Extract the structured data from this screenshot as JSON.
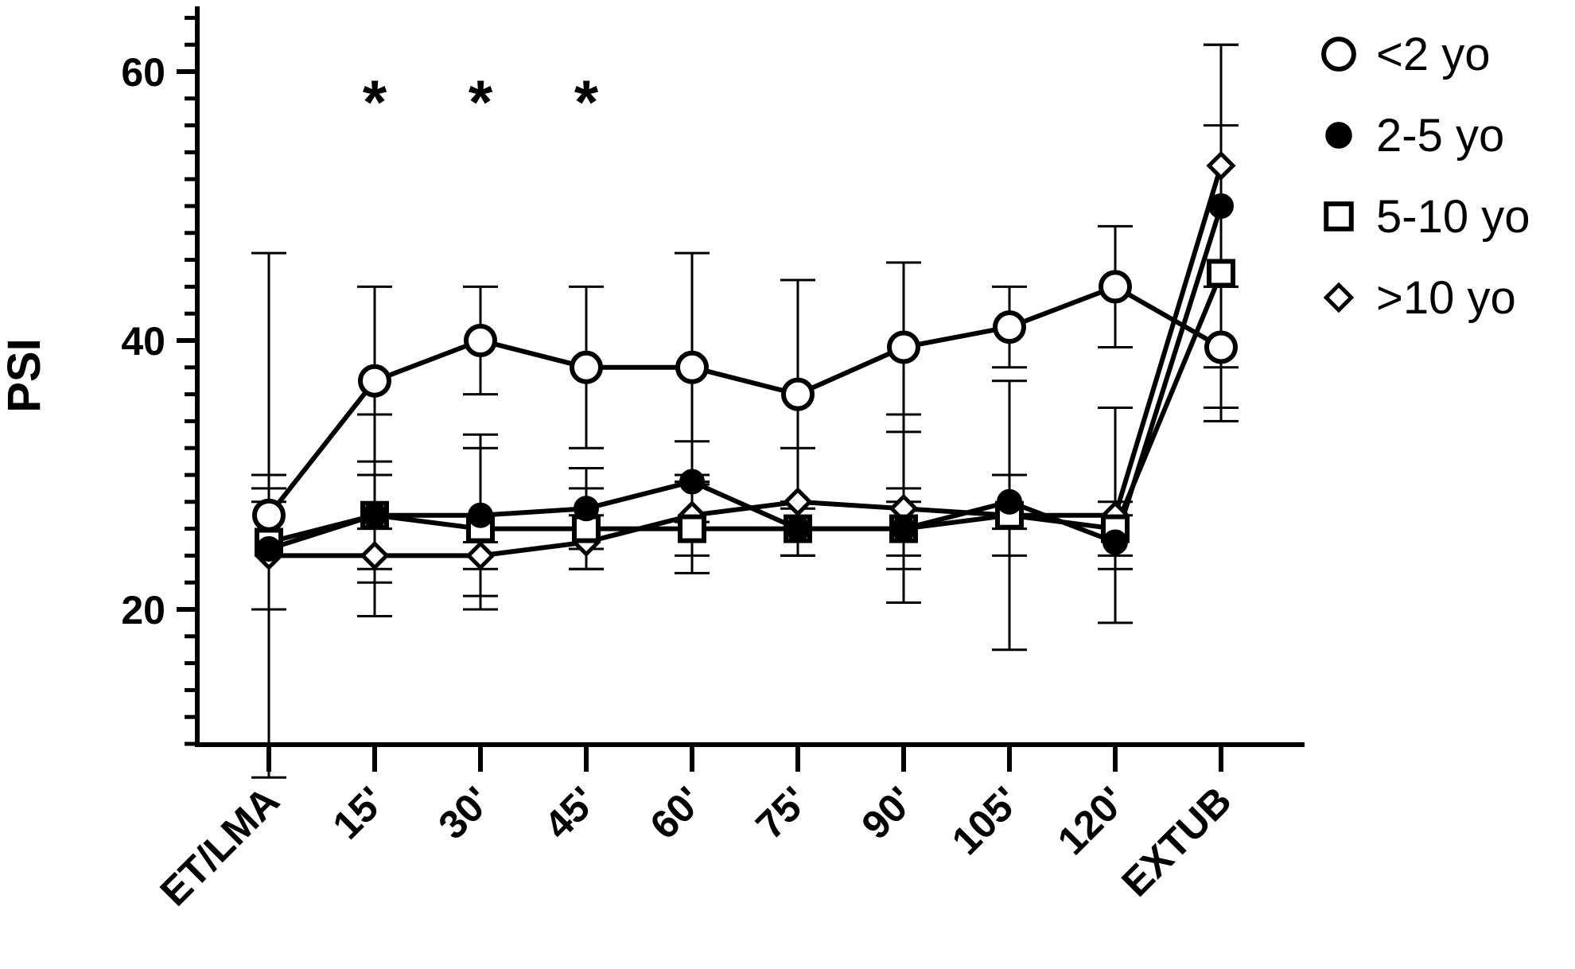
{
  "chart_data": {
    "type": "line",
    "title": "",
    "xlabel": "",
    "ylabel": "PSI",
    "ylim": [
      10,
      65
    ],
    "yticks": [
      20,
      40,
      60
    ],
    "categories": [
      "ET/LMA",
      "15'",
      "30'",
      "45'",
      "60'",
      "75'",
      "90'",
      "105'",
      "120'",
      "EXTUB"
    ],
    "legend_position": "right",
    "grid": false,
    "annotations": [
      {
        "category": "15'",
        "text": "*",
        "y": 59
      },
      {
        "category": "30'",
        "text": "*",
        "y": 59
      },
      {
        "category": "45'",
        "text": "*",
        "y": 59
      }
    ],
    "series": [
      {
        "name": "<2 yo",
        "marker": "open-circle",
        "values": [
          27,
          37,
          40,
          38,
          38,
          36,
          39.5,
          41,
          44,
          39.5
        ],
        "errors": [
          19.5,
          7,
          4,
          6,
          8.5,
          8.5,
          6.3,
          3,
          4.5,
          4.5
        ]
      },
      {
        "name": "2-5 yo",
        "marker": "filled-circle",
        "values": [
          24.5,
          27,
          27,
          27.5,
          29.5,
          26,
          26,
          28,
          25,
          50
        ],
        "errors": [
          4.5,
          4,
          6,
          3,
          3,
          2,
          3,
          2,
          2,
          12
        ]
      },
      {
        "name": "5-10 yo",
        "marker": "open-square",
        "values": [
          25,
          27,
          26,
          26,
          26,
          26,
          26,
          27,
          26,
          45
        ],
        "errors": [
          5,
          7.5,
          6,
          3,
          3.3,
          2,
          2,
          3,
          2,
          11
        ]
      },
      {
        "name": ">10 yo",
        "marker": "open-diamond",
        "values": [
          24,
          24,
          24,
          25,
          27,
          28,
          27.5,
          27,
          27,
          53
        ],
        "errors": [
          4,
          2,
          1,
          2,
          3,
          4,
          7,
          10,
          8,
          9
        ]
      }
    ]
  }
}
